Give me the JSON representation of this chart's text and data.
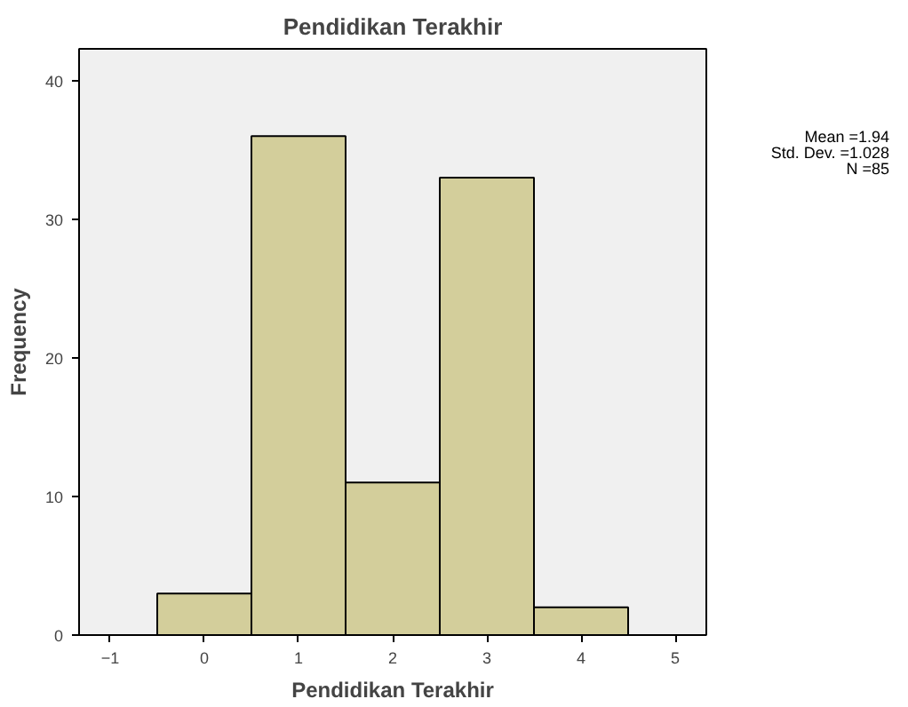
{
  "chart_data": {
    "type": "histogram",
    "title": "Pendidikan Terakhir",
    "xlabel": "Pendidikan Terakhir",
    "ylabel": "Frequency",
    "bins": [
      -0.5,
      0.5,
      1.5,
      2.5,
      3.5,
      4.5
    ],
    "values": [
      3,
      36,
      11,
      33,
      2
    ],
    "color": "#d3ce9b",
    "xlim": [
      -1.33,
      5.33
    ],
    "xticks": [
      -1,
      0,
      1,
      2,
      3,
      4,
      5
    ],
    "ylim": [
      0,
      42.3
    ],
    "yticks": [
      0,
      10,
      20,
      30,
      40
    ],
    "grid": false,
    "annotations": [
      "Mean =1.94",
      "Std. Dev. =1.028",
      "N =85"
    ]
  }
}
